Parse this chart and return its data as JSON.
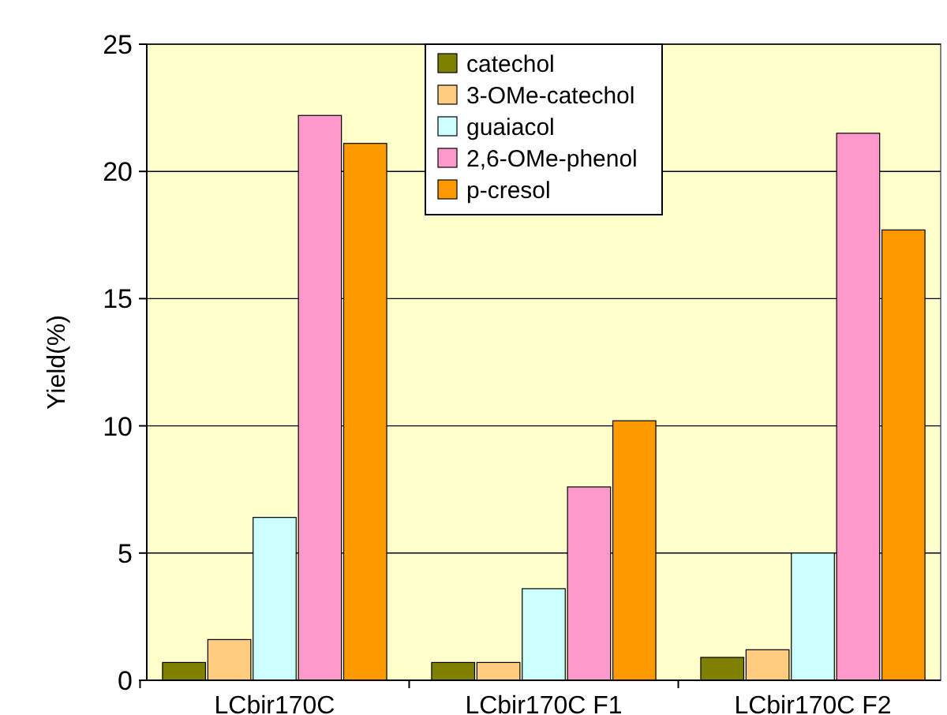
{
  "chart_data": {
    "type": "bar",
    "ylabel": "Yield(%)",
    "categories": [
      "LCbir170C",
      "LCbir170C F1",
      "LCbir170C F2"
    ],
    "series": [
      {
        "name": "catechol",
        "color": "#808000",
        "values": [
          0.7,
          0.7,
          0.9
        ]
      },
      {
        "name": "3-OMe-catechol",
        "color": "#ffcc80",
        "values": [
          1.6,
          0.7,
          1.2
        ]
      },
      {
        "name": "guaiacol",
        "color": "#ccffff",
        "values": [
          6.4,
          3.6,
          5.0
        ]
      },
      {
        "name": "2,6-OMe-phenol",
        "color": "#ff99cc",
        "values": [
          22.2,
          7.6,
          21.5
        ]
      },
      {
        "name": "p-cresol",
        "color": "#ff9900",
        "values": [
          21.1,
          10.2,
          17.7
        ]
      }
    ],
    "ylim": [
      0,
      25
    ],
    "yticks": [
      0,
      5,
      10,
      15,
      20,
      25
    ],
    "grid": "y",
    "legend": "top"
  }
}
